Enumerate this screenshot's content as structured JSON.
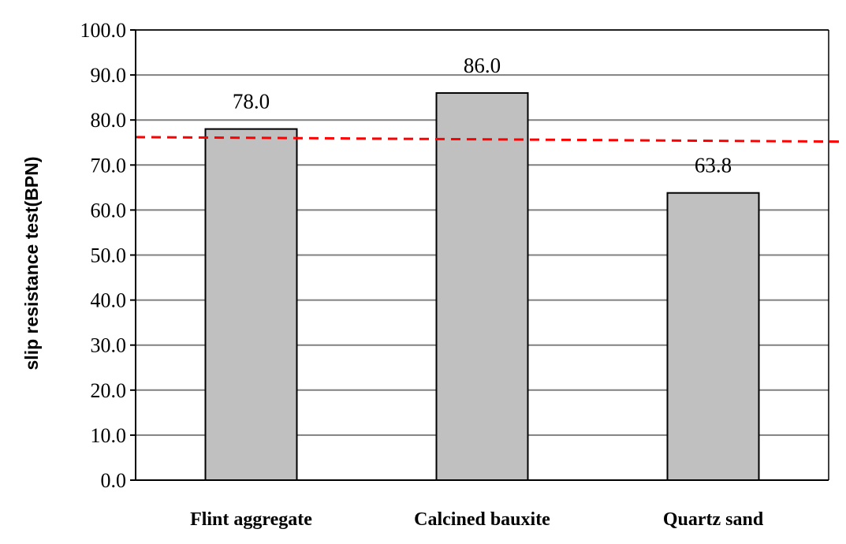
{
  "chart_data": {
    "type": "bar",
    "categories": [
      "Flint aggregate",
      "Calcined bauxite",
      "Quartz sand"
    ],
    "values": [
      78.0,
      86.0,
      63.8
    ],
    "data_labels": [
      "78.0",
      "86.0",
      "63.8"
    ],
    "title": "",
    "xlabel": "",
    "ylabel": "slip resistance test(BPN)",
    "ylim": [
      0,
      100
    ],
    "yticks": [
      "0.0",
      "10.0",
      "20.0",
      "30.0",
      "40.0",
      "50.0",
      "60.0",
      "70.0",
      "80.0",
      "90.0",
      "100.0"
    ],
    "ytick_values": [
      0,
      10,
      20,
      30,
      40,
      50,
      60,
      70,
      80,
      90,
      100
    ],
    "reference_line": {
      "y_start": 76.2,
      "y_end": 75.2,
      "style": "dashed",
      "color": "#ff0000"
    },
    "grid": true,
    "bar_color": "#c0c0c0",
    "bar_edge_color": "#000000",
    "gridline_color": "#808080"
  }
}
